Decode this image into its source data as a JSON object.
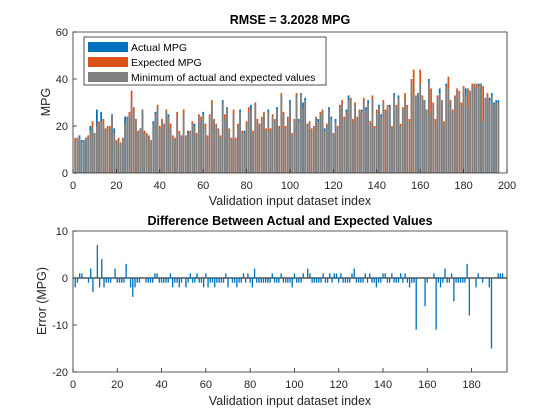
{
  "chart_data": [
    {
      "type": "bar",
      "title": "RMSE = 3.2028 MPG",
      "xlabel": "Validation input dataset index",
      "ylabel": "MPG",
      "xlim": [
        0,
        200
      ],
      "ylim": [
        0,
        60
      ],
      "xticks": [
        0,
        20,
        40,
        60,
        80,
        100,
        120,
        140,
        160,
        180,
        200
      ],
      "yticks": [
        0,
        20,
        40,
        60
      ],
      "grid": false,
      "legend_position": "top-left",
      "series": [
        {
          "name": "Actual MPG",
          "color": "#0072BD",
          "values": [
            13,
            14,
            16,
            14,
            14,
            15,
            15,
            20,
            19,
            17,
            27,
            20,
            26,
            21,
            18,
            19,
            19,
            25,
            19,
            13,
            14,
            12,
            14,
            24,
            24,
            24,
            31,
            26,
            22,
            17,
            19,
            27,
            17,
            16,
            15,
            13,
            22,
            26,
            28,
            19,
            22,
            20,
            26,
            25,
            19,
            15,
            14,
            24,
            17,
            16,
            25,
            15,
            18,
            17,
            21,
            21,
            16,
            24,
            22,
            26,
            19,
            15,
            24,
            29,
            22,
            20,
            18,
            15,
            31,
            23,
            28,
            18,
            14,
            25,
            14,
            20,
            27,
            17,
            18,
            21,
            26,
            29,
            17,
            29,
            22,
            20,
            23,
            25,
            18,
            27,
            18,
            24,
            22,
            28,
            19,
            33,
            25,
            19,
            22,
            31,
            16,
            22,
            33,
            23,
            34,
            30,
            32,
            20,
            21,
            18,
            19,
            23,
            23,
            25,
            26,
            19,
            20,
            28,
            24,
            16,
            23,
            19,
            28,
            30,
            23,
            27,
            33,
            31,
            22,
            29,
            23,
            26,
            27,
            31,
            28,
            31,
            21,
            31,
            19,
            25,
            29,
            25,
            30,
            26,
            28,
            29,
            19,
            34,
            28,
            33,
            20,
            27,
            31,
            28,
            22,
            38,
            33,
            33,
            34,
            38,
            32,
            31,
            27,
            40,
            25,
            29,
            21,
            32,
            36,
            30,
            21,
            38,
            36,
            30,
            26,
            32,
            35,
            34,
            29,
            36,
            36,
            28,
            35,
            37,
            38,
            36,
            38,
            38,
            22,
            32,
            33,
            32,
            34,
            30,
            31,
            31
          ]
        },
        {
          "name": "Expected MPG",
          "color": "#D95319",
          "values": [
            15,
            15,
            15,
            13,
            14,
            15,
            16,
            18,
            22,
            17,
            20,
            22,
            22,
            23,
            19,
            20,
            20,
            25,
            17,
            14,
            15,
            13,
            15,
            21,
            24,
            26,
            35,
            28,
            23,
            18,
            19,
            27,
            18,
            17,
            16,
            14,
            21,
            25,
            29,
            20,
            23,
            21,
            27,
            24,
            21,
            16,
            15,
            26,
            18,
            16,
            27,
            16,
            17,
            18,
            22,
            20,
            17,
            25,
            24,
            25,
            21,
            16,
            25,
            31,
            23,
            21,
            19,
            16,
            30,
            25,
            28,
            19,
            15,
            27,
            15,
            21,
            26,
            18,
            17,
            22,
            28,
            27,
            18,
            30,
            23,
            21,
            24,
            26,
            19,
            26,
            19,
            25,
            23,
            27,
            20,
            34,
            26,
            20,
            24,
            30,
            17,
            23,
            34,
            22,
            34,
            28,
            31,
            21,
            22,
            19,
            20,
            24,
            22,
            26,
            27,
            18,
            21,
            27,
            23,
            17,
            22,
            20,
            29,
            31,
            24,
            26,
            31,
            32,
            23,
            30,
            24,
            27,
            26,
            32,
            27,
            30,
            22,
            33,
            20,
            27,
            28,
            24,
            31,
            27,
            29,
            28,
            20,
            33,
            29,
            32,
            21,
            28,
            34,
            29,
            23,
            40,
            44,
            33,
            34,
            44,
            33,
            31,
            27,
            39,
            36,
            30,
            23,
            33,
            34,
            31,
            22,
            37,
            41,
            31,
            27,
            33,
            36,
            35,
            30,
            37,
            33,
            36,
            35,
            38,
            38,
            38,
            37,
            38,
            37,
            32,
            34,
            31,
            33,
            29,
            30,
            30
          ]
        },
        {
          "name": "Minimum of actual and expected values",
          "color": "#808080"
        }
      ]
    },
    {
      "type": "bar",
      "title": "Difference Between Actual and Expected Values",
      "xlabel": "Validation input dataset index",
      "ylabel": "Error (MPG)",
      "xlim": [
        0,
        196
      ],
      "ylim": [
        -20,
        10
      ],
      "xticks": [
        0,
        20,
        40,
        60,
        80,
        100,
        120,
        140,
        160,
        180
      ],
      "yticks": [
        -20,
        -10,
        0,
        10
      ],
      "grid": false,
      "series": [
        {
          "color": "#0072BD",
          "values": [
            -2,
            -1,
            1,
            1,
            0,
            0,
            -1,
            2,
            -3,
            0,
            7,
            -2,
            4,
            -2,
            -1,
            -1,
            -1,
            0,
            2,
            -1,
            -1,
            -1,
            -1,
            3,
            0,
            -2,
            -4,
            -2,
            -1,
            -1,
            0,
            0,
            -1,
            -1,
            -1,
            -1,
            1,
            1,
            -1,
            -1,
            -1,
            -1,
            -1,
            1,
            -2,
            -1,
            -1,
            -2,
            -1,
            0,
            -2,
            -1,
            1,
            -1,
            -1,
            1,
            -1,
            -1,
            -2,
            1,
            -2,
            -1,
            -1,
            -2,
            -1,
            -1,
            -1,
            -1,
            1,
            -2,
            0,
            -1,
            -1,
            -2,
            -1,
            -1,
            1,
            -1,
            1,
            -1,
            -2,
            2,
            -1,
            -1,
            -1,
            -1,
            -1,
            -1,
            -1,
            1,
            -1,
            -1,
            -1,
            1,
            -1,
            -1,
            -1,
            -1,
            -2,
            1,
            -1,
            -1,
            -1,
            1,
            0,
            2,
            1,
            -1,
            -1,
            -1,
            -1,
            -1,
            1,
            -1,
            -1,
            1,
            -1,
            1,
            1,
            -1,
            1,
            -1,
            -1,
            -1,
            -1,
            1,
            2,
            -1,
            -1,
            -1,
            -1,
            1,
            -1,
            1,
            -1,
            -1,
            -2,
            -1,
            -1,
            1,
            1,
            -1,
            -1,
            1,
            -1,
            -1,
            -1,
            1,
            -1,
            1,
            -1,
            -2,
            -1,
            -1,
            -11,
            0,
            0,
            0,
            -6,
            -1,
            0,
            0,
            1,
            -11,
            -1,
            -2,
            -1,
            2,
            -1,
            -1,
            1,
            -5,
            -1,
            -1,
            -1,
            -1,
            -1,
            3,
            -8,
            0,
            0,
            -2,
            1,
            0,
            -1,
            0,
            0,
            -2,
            -15,
            0,
            0,
            1,
            1,
            1
          ]
        }
      ]
    }
  ]
}
